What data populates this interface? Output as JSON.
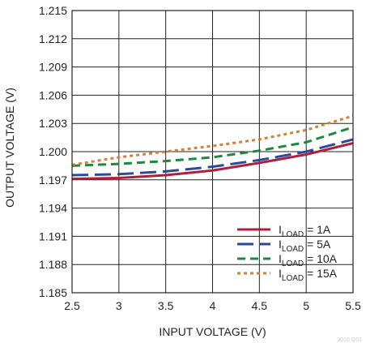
{
  "chart_data": {
    "type": "line",
    "title": "",
    "xlabel": "INPUT VOLTAGE (V)",
    "ylabel": "OUTPUT VOLTAGE (V)",
    "xlim": [
      2.5,
      5.5
    ],
    "ylim": [
      1.185,
      1.215
    ],
    "x_ticks": [
      "2.5",
      "3",
      "3.5",
      "4",
      "4.5",
      "5",
      "5.5"
    ],
    "y_ticks": [
      "1.185",
      "1.188",
      "1.191",
      "1.194",
      "1.197",
      "1.200",
      "1.203",
      "1.206",
      "1.209",
      "1.212",
      "1.215"
    ],
    "grid": true,
    "legend_position": "bottom-right",
    "legend_prefix": "I",
    "legend_subscript": "LOAD",
    "figure_code": "3010 G01",
    "series": [
      {
        "name": "1A",
        "legend_value": " = 1A",
        "color": "#b01e3c",
        "dash": "solid",
        "x": [
          2.5,
          3.0,
          3.5,
          4.0,
          4.5,
          5.0,
          5.5
        ],
        "y": [
          1.1971,
          1.1972,
          1.1975,
          1.198,
          1.1988,
          1.1997,
          1.2009
        ]
      },
      {
        "name": "5A",
        "legend_value": " = 5A",
        "color": "#2a4a9a",
        "dash": "long-dash",
        "x": [
          2.5,
          3.0,
          3.5,
          4.0,
          4.5,
          5.0,
          5.5
        ],
        "y": [
          1.1975,
          1.1976,
          1.1979,
          1.1984,
          1.1991,
          1.2,
          1.2013
        ]
      },
      {
        "name": "10A",
        "legend_value": " = 10A",
        "color": "#1a8a3c",
        "dash": "dash",
        "x": [
          2.5,
          3.0,
          3.5,
          4.0,
          4.5,
          5.0,
          5.5
        ],
        "y": [
          1.1985,
          1.1987,
          1.199,
          1.1994,
          1.2001,
          1.201,
          1.2026
        ]
      },
      {
        "name": "15A",
        "legend_value": " = 15A",
        "color": "#d4803a",
        "dash": "dot",
        "x": [
          2.5,
          3.0,
          3.5,
          4.0,
          4.5,
          5.0,
          5.5
        ],
        "y": [
          1.1986,
          1.1994,
          1.2,
          1.2006,
          1.2013,
          1.2023,
          1.2038
        ]
      }
    ]
  }
}
